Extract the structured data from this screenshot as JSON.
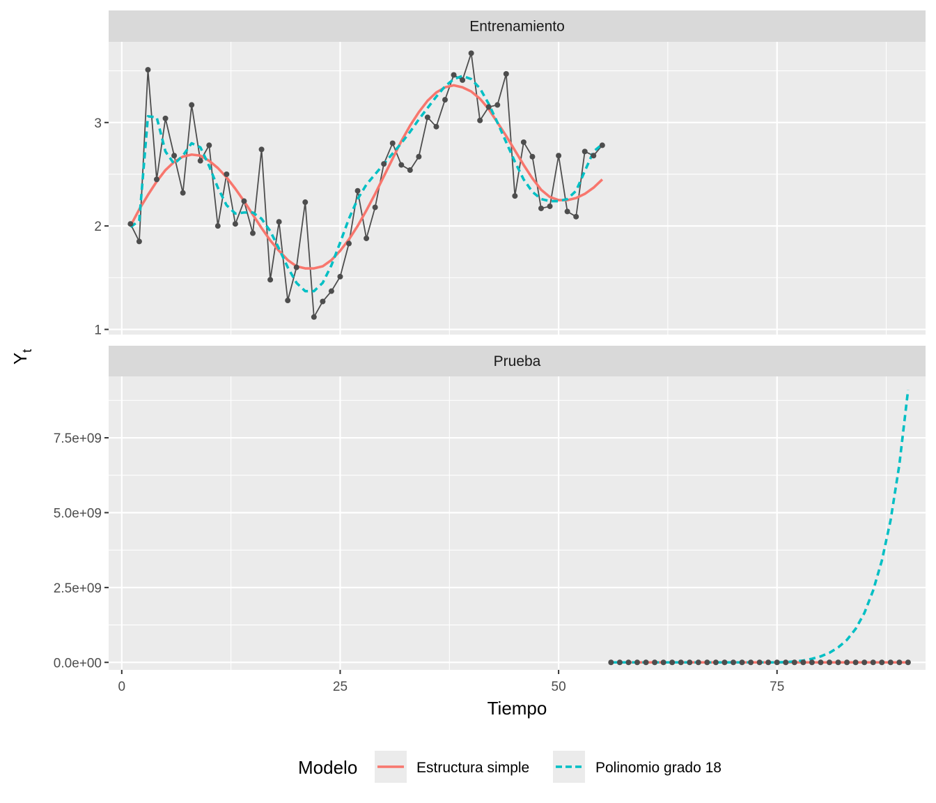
{
  "chart_data": {
    "type": "line",
    "xlabel": "Tiempo",
    "ylabel": "Y",
    "ylabel_subscript": "t",
    "x_range": [
      -1.5,
      92
    ],
    "x_ticks": [
      0,
      25,
      50,
      75
    ],
    "x_tick_labels": [
      "0",
      "25",
      "50",
      "75"
    ],
    "legend": {
      "title": "Modelo",
      "position": "bottom",
      "entries": [
        {
          "name": "Estructura simple",
          "color": "#F8766D",
          "dash": "solid"
        },
        {
          "name": "Polinomio grado 18",
          "color": "#00BFC4",
          "dash": "dashed"
        }
      ]
    },
    "colors": {
      "observed": "#4d4d4d",
      "simple": "#F8766D",
      "poly": "#00BFC4",
      "panel": "#EBEBEB",
      "strip": "#D9D9D9",
      "grid": "#ffffff"
    },
    "panels": [
      {
        "strip": "Entrenamiento",
        "y_range": [
          0.95,
          3.78
        ],
        "y_ticks": [
          1,
          2,
          3
        ],
        "y_tick_labels": [
          "1",
          "2",
          "3"
        ],
        "observed": {
          "x": [
            1,
            2,
            3,
            4,
            5,
            6,
            7,
            8,
            9,
            10,
            11,
            12,
            13,
            14,
            15,
            16,
            17,
            18,
            19,
            20,
            21,
            22,
            23,
            24,
            25,
            26,
            27,
            28,
            29,
            30,
            31,
            32,
            33,
            34,
            35,
            36,
            37,
            38,
            39,
            40,
            41,
            42,
            43,
            44,
            45,
            46,
            47,
            48,
            49,
            50,
            51,
            52,
            53,
            54,
            55
          ],
          "y": [
            2.02,
            1.85,
            3.51,
            2.45,
            3.04,
            2.68,
            2.32,
            3.17,
            2.63,
            2.78,
            2.0,
            2.5,
            2.02,
            2.24,
            1.93,
            2.74,
            1.48,
            2.04,
            1.28,
            1.6,
            2.23,
            1.12,
            1.27,
            1.37,
            1.51,
            1.83,
            2.34,
            1.88,
            2.18,
            2.6,
            2.8,
            2.59,
            2.54,
            2.67,
            3.05,
            2.96,
            3.22,
            3.46,
            3.41,
            3.67,
            3.02,
            3.15,
            3.17,
            3.47,
            2.29,
            2.81,
            2.67,
            2.17,
            2.19,
            2.68,
            2.14,
            2.09,
            2.72,
            2.68,
            2.78
          ]
        },
        "series": [
          {
            "name": "Estructura simple",
            "x": [
              1,
              2,
              3,
              4,
              5,
              6,
              7,
              8,
              9,
              10,
              11,
              12,
              13,
              14,
              15,
              16,
              17,
              18,
              19,
              20,
              21,
              22,
              23,
              24,
              25,
              26,
              27,
              28,
              29,
              30,
              31,
              32,
              33,
              34,
              35,
              36,
              37,
              38,
              39,
              40,
              41,
              42,
              43,
              44,
              45,
              46,
              47,
              48,
              49,
              50,
              51,
              52,
              53,
              54,
              55
            ],
            "y": [
              2.0,
              2.16,
              2.3,
              2.43,
              2.54,
              2.62,
              2.67,
              2.69,
              2.68,
              2.63,
              2.56,
              2.47,
              2.36,
              2.24,
              2.11,
              1.98,
              1.86,
              1.76,
              1.67,
              1.61,
              1.59,
              1.59,
              1.61,
              1.67,
              1.76,
              1.87,
              2.0,
              2.15,
              2.31,
              2.48,
              2.65,
              2.82,
              2.97,
              3.1,
              3.21,
              3.29,
              3.34,
              3.36,
              3.34,
              3.3,
              3.23,
              3.13,
              3.0,
              2.87,
              2.73,
              2.59,
              2.46,
              2.35,
              2.28,
              2.25,
              2.25,
              2.27,
              2.31,
              2.37,
              2.45
            ]
          },
          {
            "name": "Polinomio grado 18",
            "x": [
              1,
              2,
              3,
              4,
              5,
              6,
              7,
              8,
              9,
              10,
              11,
              12,
              13,
              14,
              15,
              16,
              17,
              18,
              19,
              20,
              21,
              22,
              23,
              24,
              25,
              26,
              27,
              28,
              29,
              30,
              31,
              32,
              33,
              34,
              35,
              36,
              37,
              38,
              39,
              40,
              41,
              42,
              43,
              44,
              45,
              46,
              47,
              48,
              49,
              50,
              51,
              52,
              53,
              54,
              55
            ],
            "y": [
              1.99,
              2.05,
              3.06,
              3.05,
              2.72,
              2.6,
              2.68,
              2.8,
              2.76,
              2.58,
              2.37,
              2.2,
              2.12,
              2.13,
              2.13,
              2.07,
              1.95,
              1.78,
              1.6,
              1.45,
              1.37,
              1.37,
              1.45,
              1.62,
              1.84,
              2.07,
              2.26,
              2.4,
              2.5,
              2.6,
              2.7,
              2.8,
              2.91,
              3.03,
              3.14,
              3.25,
              3.35,
              3.42,
              3.45,
              3.42,
              3.33,
              3.18,
              3.0,
              2.81,
              2.62,
              2.45,
              2.33,
              2.26,
              2.24,
              2.24,
              2.26,
              2.34,
              2.53,
              2.72,
              2.79
            ]
          }
        ]
      },
      {
        "strip": "Prueba",
        "y_range": [
          -250000000.0,
          9550000000.0
        ],
        "y_ticks": [
          0,
          2500000000.0,
          5000000000.0,
          7500000000.0
        ],
        "y_tick_labels": [
          "0.0e+00",
          "2.5e+09",
          "5.0e+09",
          "7.5e+09"
        ],
        "observed": {
          "x": [
            56,
            57,
            58,
            59,
            60,
            61,
            62,
            63,
            64,
            65,
            66,
            67,
            68,
            69,
            70,
            71,
            72,
            73,
            74,
            75,
            76,
            77,
            78,
            79,
            80,
            81,
            82,
            83,
            84,
            85,
            86,
            87,
            88,
            89,
            90
          ],
          "y": [
            0,
            0,
            0,
            0,
            0,
            0,
            0,
            0,
            0,
            0,
            0,
            0,
            0,
            0,
            0,
            0,
            0,
            0,
            0,
            0,
            0,
            0,
            0,
            0,
            0,
            0,
            0,
            0,
            0,
            0,
            0,
            0,
            0,
            0,
            0
          ]
        },
        "series": [
          {
            "name": "Estructura simple",
            "x": [
              56,
              58,
              60,
              62,
              64,
              66,
              68,
              70,
              72,
              74,
              76,
              78,
              80,
              82,
              84,
              86,
              88,
              90
            ],
            "y": [
              0,
              0,
              0,
              0,
              0,
              0,
              0,
              0,
              0,
              0,
              0,
              0,
              0,
              0,
              0,
              0,
              0,
              0
            ]
          },
          {
            "name": "Polinomio grado 18",
            "x": [
              56,
              60,
              64,
              68,
              72,
              74,
              75,
              76,
              77,
              78,
              79,
              80,
              81,
              82,
              83,
              84,
              85,
              86,
              87,
              88,
              89,
              90
            ],
            "y": [
              0,
              0,
              0,
              0,
              0,
              0,
              0,
              10000000.0,
              30000000.0,
              60000000.0,
              120000000.0,
              200000000.0,
              320000000.0,
              500000000.0,
              750000000.0,
              1120000000.0,
              1650000000.0,
              2400000000.0,
              3400000000.0,
              4750000000.0,
              6600000000.0,
              9100000000.0
            ]
          }
        ]
      }
    ]
  }
}
